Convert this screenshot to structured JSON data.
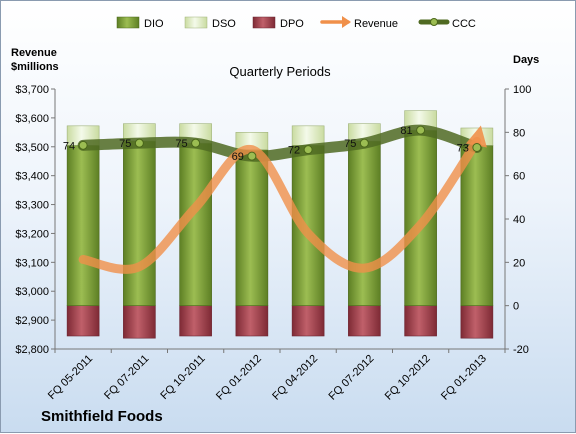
{
  "chart_data": {
    "type": "bar",
    "title": "Quarterly Periods",
    "brand": "Smithfield Foods",
    "y_left_label_line1": "Revenue",
    "y_left_label_line2": "$millions",
    "y_right_label": "Days",
    "ylim_left": [
      2800,
      3700
    ],
    "ylim_right": [
      -20,
      100
    ],
    "y_left_ticks": [
      "$2,800",
      "$2,900",
      "$3,000",
      "$3,100",
      "$3,200",
      "$3,300",
      "$3,400",
      "$3,500",
      "$3,600",
      "$3,700"
    ],
    "y_right_ticks": [
      "-20",
      "0",
      "20",
      "40",
      "60",
      "80",
      "100"
    ],
    "categories": [
      "FQ 05-2011",
      "FQ 07-2011",
      "FQ 10-2011",
      "FQ 01-2012",
      "FQ 04-2012",
      "FQ 07-2012",
      "FQ 10-2012",
      "FQ 01-2013"
    ],
    "legend": [
      "DIO",
      "DSO",
      "DPO",
      "Revenue",
      "CCC"
    ],
    "colors": {
      "DIO": "#7fa035",
      "DSO": "#e4f0c4",
      "DPO": "#a8404c",
      "Revenue": "#f0904a",
      "CCC": "#4f6a22"
    },
    "series": [
      {
        "name": "DIO",
        "axis": "right",
        "values": [
          74,
          76,
          75,
          72,
          74,
          76,
          81,
          74
        ]
      },
      {
        "name": "DSO",
        "axis": "right",
        "values": [
          9,
          8,
          9,
          8,
          9,
          8,
          9,
          8
        ]
      },
      {
        "name": "DPO",
        "axis": "right",
        "values": [
          -14,
          -15,
          -14,
          -14,
          -14,
          -14,
          -14,
          -15
        ]
      },
      {
        "name": "Revenue",
        "axis": "left",
        "values": [
          3110,
          3085,
          3290,
          3490,
          3200,
          3080,
          3230,
          3560
        ]
      },
      {
        "name": "CCC",
        "axis": "right",
        "values": [
          74,
          75,
          75,
          69,
          72,
          75,
          81,
          73
        ],
        "labels": [
          "74",
          "75",
          "75",
          "69",
          "72",
          "75",
          "81",
          "73"
        ]
      }
    ]
  }
}
